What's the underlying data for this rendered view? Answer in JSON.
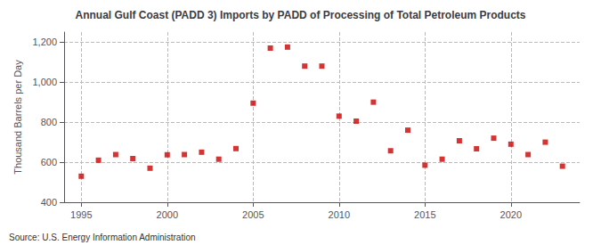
{
  "chart_data": {
    "type": "scatter",
    "title": "Annual Gulf Coast (PADD 3) Imports by PADD of Processing of Total Petroleum Products",
    "ylabel": "Thousand Barrels per Day",
    "annotations": [
      "Source: U.S. Energy Information Administration"
    ],
    "x": [
      1995,
      1996,
      1997,
      1998,
      1999,
      2000,
      2001,
      2002,
      2003,
      2004,
      2005,
      2006,
      2007,
      2008,
      2009,
      2010,
      2011,
      2012,
      2013,
      2014,
      2015,
      2016,
      2017,
      2018,
      2019,
      2020,
      2021,
      2022,
      2023
    ],
    "values": [
      530,
      610,
      638,
      618,
      570,
      637,
      638,
      650,
      615,
      668,
      895,
      1170,
      1175,
      1080,
      1080,
      830,
      805,
      900,
      657,
      760,
      585,
      615,
      707,
      667,
      720,
      690,
      638,
      700,
      580
    ],
    "color": "#cc0000",
    "marker": "square",
    "xlim": [
      1994,
      2024
    ],
    "xticks": [
      1995,
      2000,
      2005,
      2010,
      2015,
      2020
    ],
    "ylim": [
      400,
      1250
    ],
    "yticks": [
      400,
      600,
      800,
      {
        "value": 1000,
        "label": "1,000"
      },
      {
        "value": 1200,
        "label": "1,200"
      }
    ],
    "grid": true
  }
}
